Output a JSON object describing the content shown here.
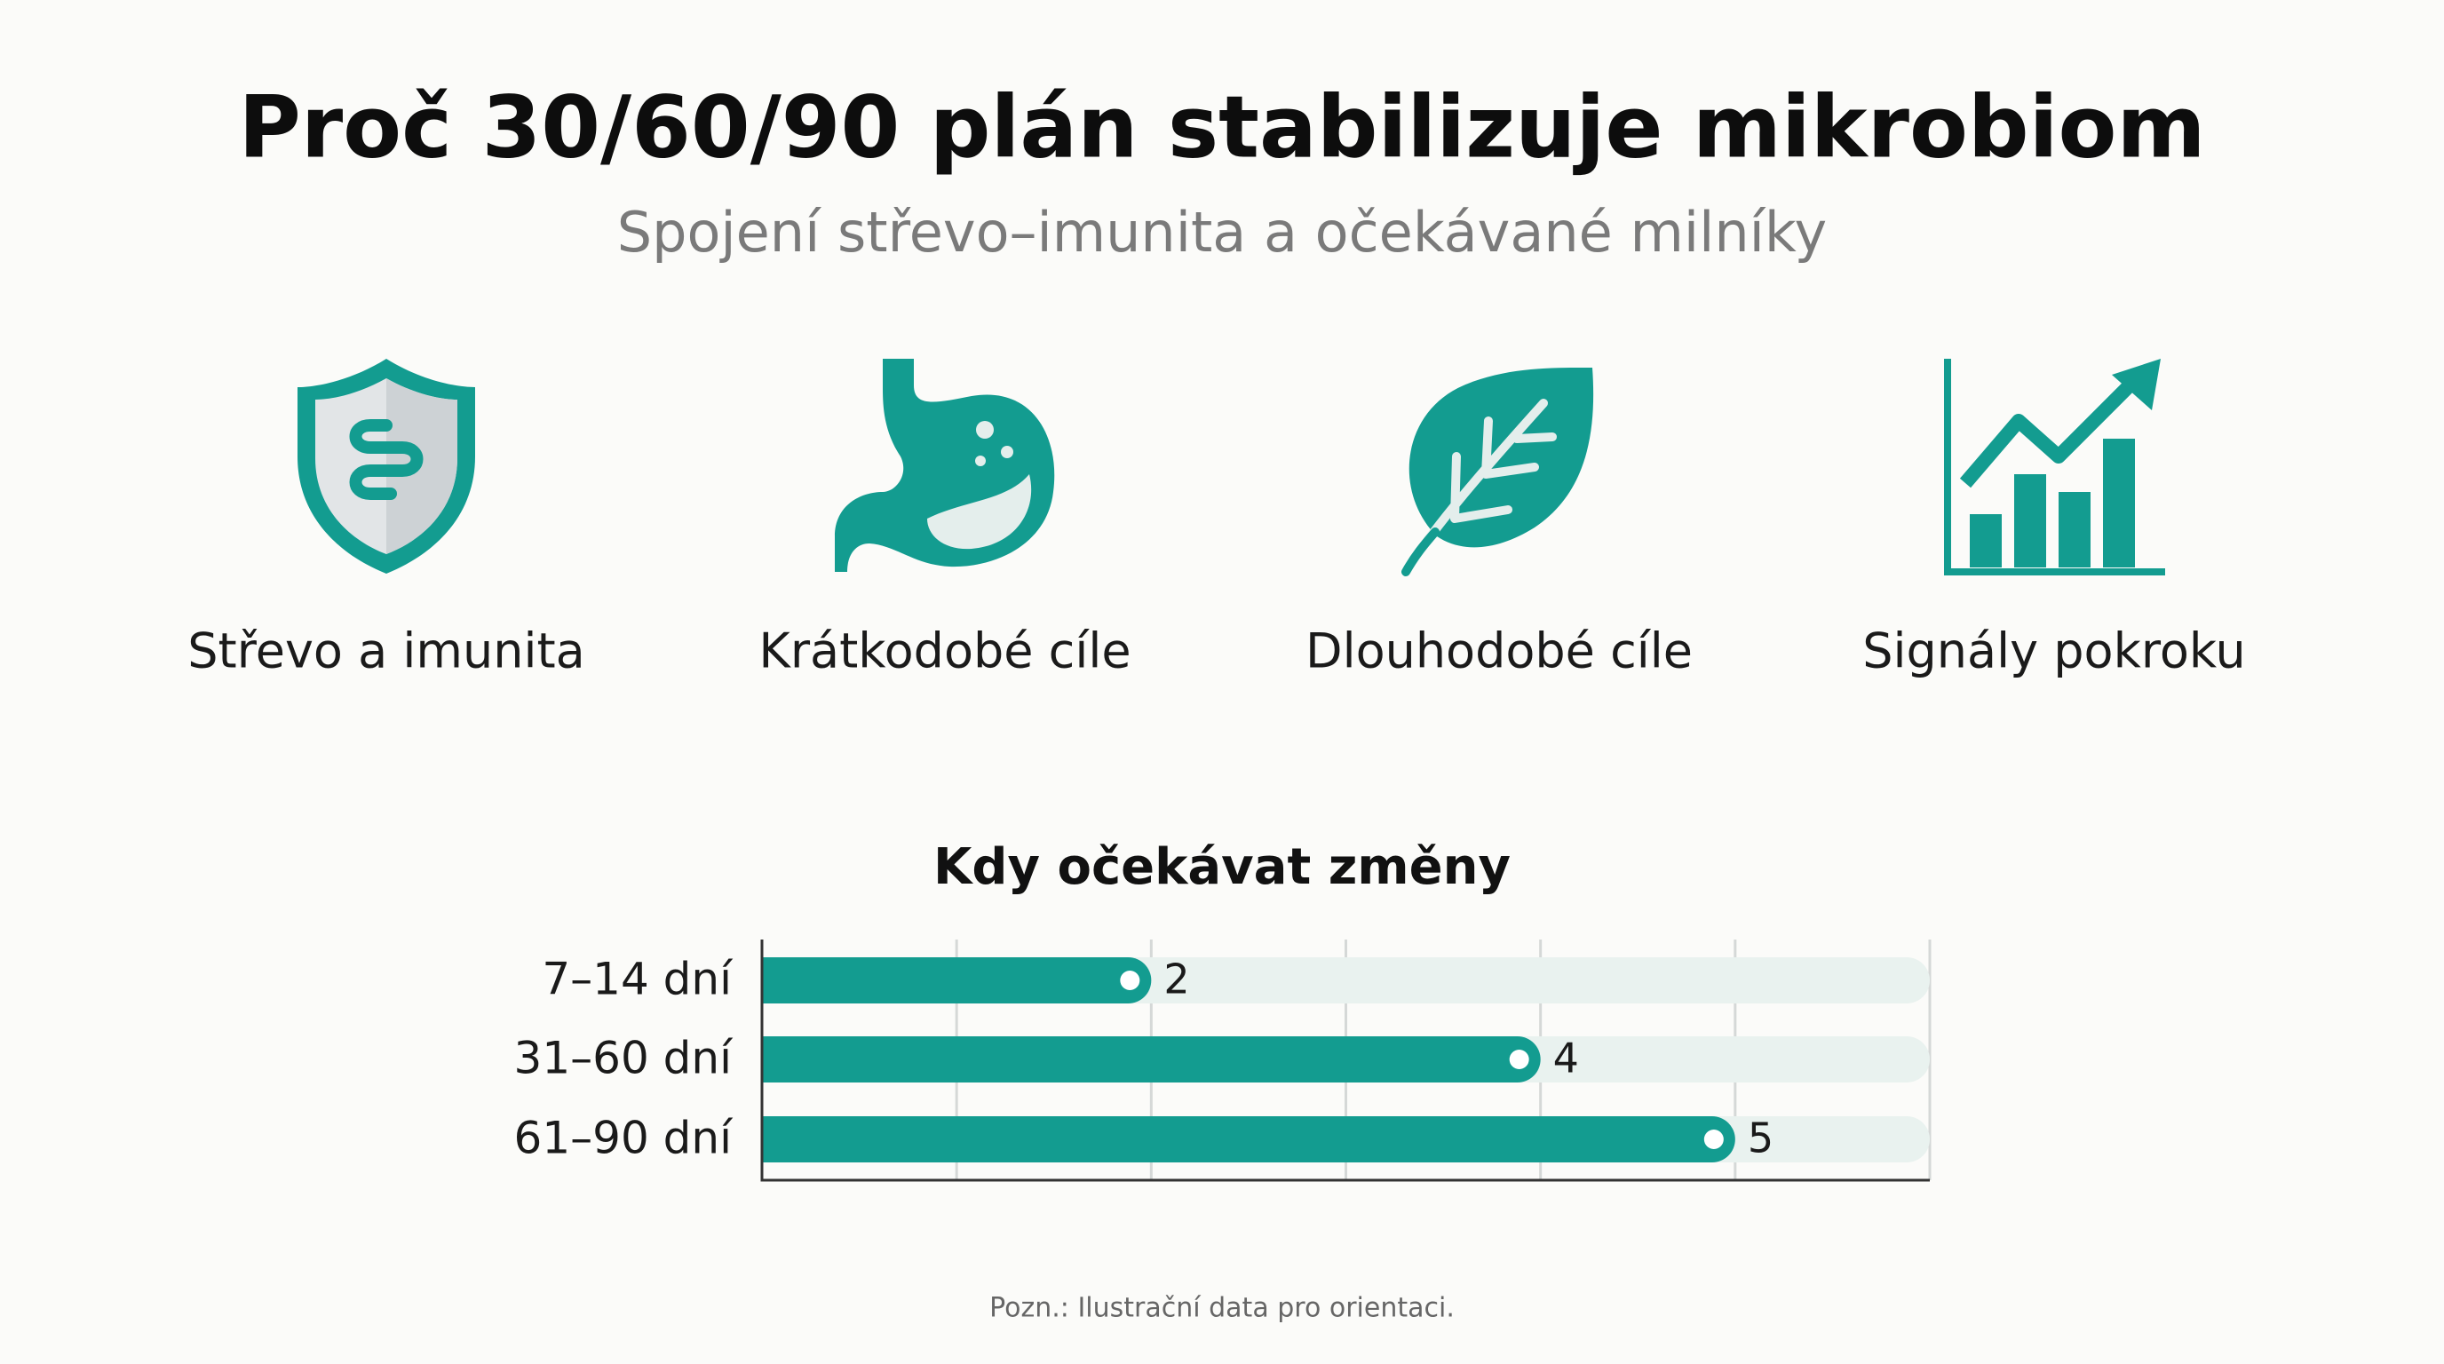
{
  "header": {
    "title": "Proč 30/60/90 plán stabilizuje mikrobiom",
    "subtitle": "Spojení střevo–imunita a očekávané milníky"
  },
  "features": [
    {
      "label": "Střevo a imunita"
    },
    {
      "label": "Krátkodobé cíle"
    },
    {
      "label": "Dlouhodobé cíle"
    },
    {
      "label": "Signály pokroku"
    }
  ],
  "chart_data": {
    "type": "hbar",
    "title": "Kdy očekávat změny",
    "categories": [
      "7–14 dní",
      "31–60 dní",
      "61–90 dní"
    ],
    "values": [
      2,
      4,
      5
    ],
    "color": "#139c90",
    "track_color": "#e9f2ef",
    "xlim": [
      0,
      6
    ],
    "xticks": [
      0,
      1,
      2,
      3,
      4,
      5,
      6
    ],
    "grid": true
  },
  "note": "Pozn.: Ilustrační data pro orientaci."
}
